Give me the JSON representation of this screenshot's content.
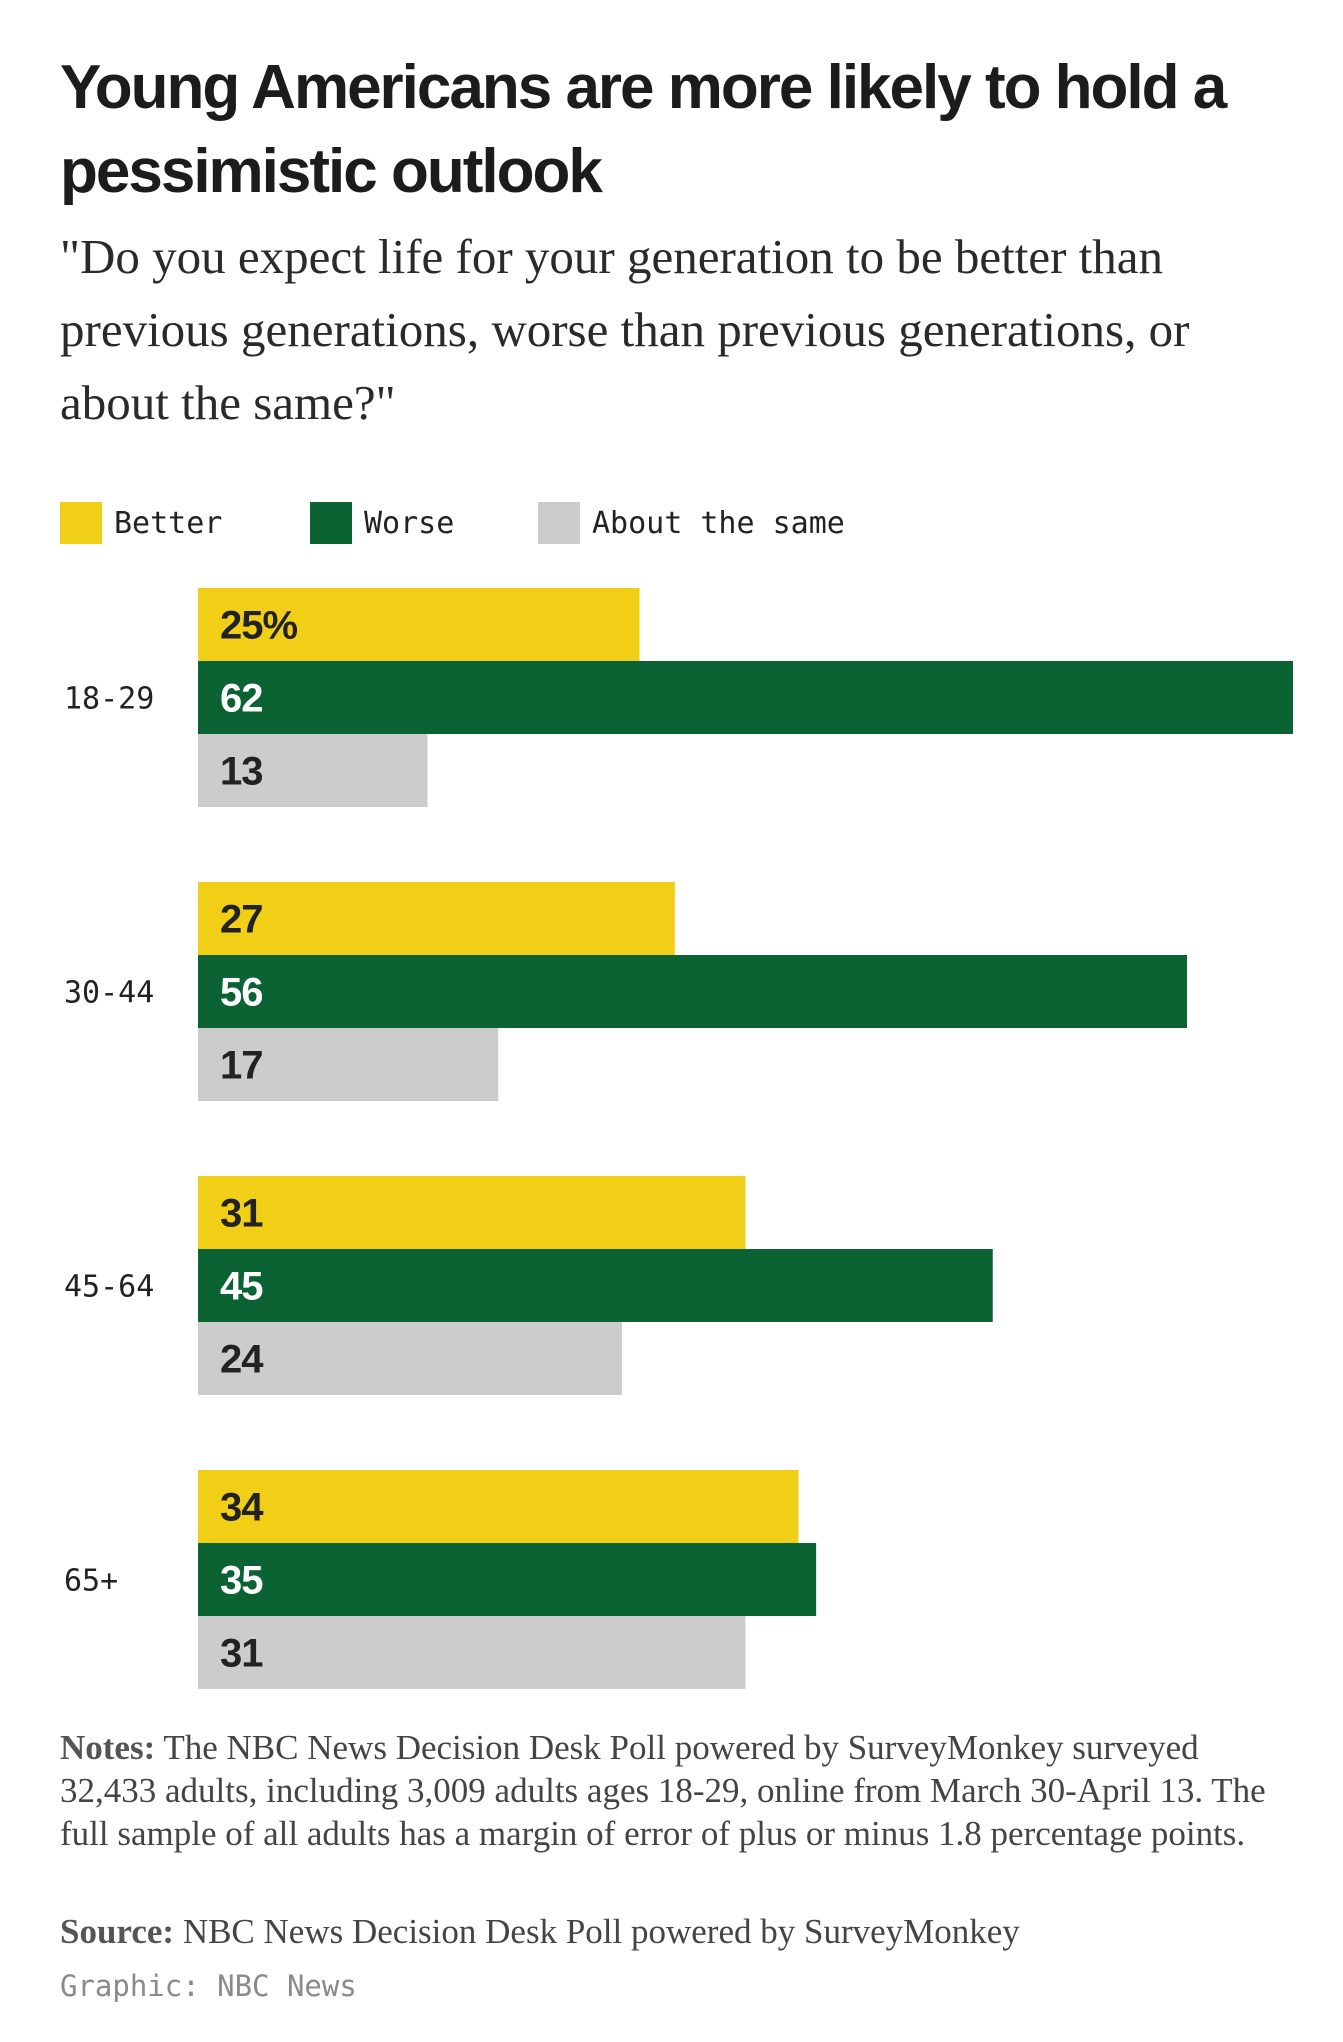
{
  "title": "Young Americans are more likely to hold a pessimistic outlook",
  "subtitle": "\"Do you expect life for your generation to be better than previous generations, worse than previous generations, or about the same?\"",
  "notes": {
    "label": "Notes:",
    "text": " The NBC News Decision Desk Poll powered by SurveyMonkey surveyed 32,433 adults, including 3,009 adults ages 18-29, online from March 30-April 13. The full sample of all adults has a margin of error of plus or minus 1.8 percentage points."
  },
  "source": {
    "label": "Source:",
    "text": " NBC News Decision Desk Poll powered by SurveyMonkey"
  },
  "credit": "Graphic: NBC News",
  "chart_data": {
    "type": "bar",
    "orientation": "horizontal",
    "categories": [
      "18-29",
      "30-44",
      "45-64",
      "65+"
    ],
    "series": [
      {
        "name": "Better",
        "color": "#f2cf17",
        "label_color": "#222222",
        "values": [
          25,
          27,
          31,
          34
        ]
      },
      {
        "name": "Worse",
        "color": "#0b6334",
        "label_color": "#ffffff",
        "values": [
          62,
          56,
          45,
          35
        ]
      },
      {
        "name": "About the same",
        "color": "#cccccc",
        "label_color": "#222222",
        "values": [
          13,
          17,
          24,
          31
        ]
      }
    ],
    "first_label_suffix": "%",
    "xlim": [
      0,
      62
    ],
    "legend": "top-left",
    "grid": false
  }
}
